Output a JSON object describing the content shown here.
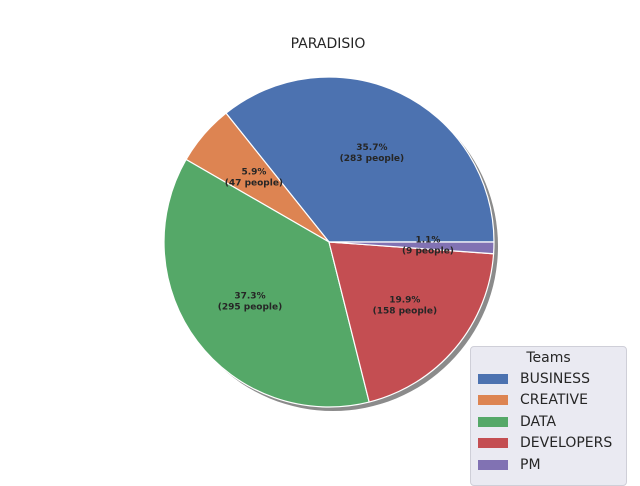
{
  "chart_data": {
    "type": "pie",
    "title": "PARADISIO",
    "categories": [
      "BUSINESS",
      "CREATIVE",
      "DATA",
      "DEVELOPERS",
      "PM"
    ],
    "values": [
      283,
      47,
      295,
      158,
      9
    ],
    "percent_labels": [
      "35.7%",
      "5.9%",
      "37.3%",
      "19.9%",
      "1.1%"
    ],
    "count_labels": [
      "(283 people)",
      "(47 people)",
      "(295 people)",
      "(158 people)",
      "(9 people)"
    ],
    "colors": [
      "#4c72b0",
      "#dd8452",
      "#55a868",
      "#c44e52",
      "#8172b3"
    ],
    "start_angle": 0,
    "direction": "counterclockwise",
    "shadow": true,
    "legend": {
      "title": "Teams",
      "position": "lower-right"
    }
  }
}
